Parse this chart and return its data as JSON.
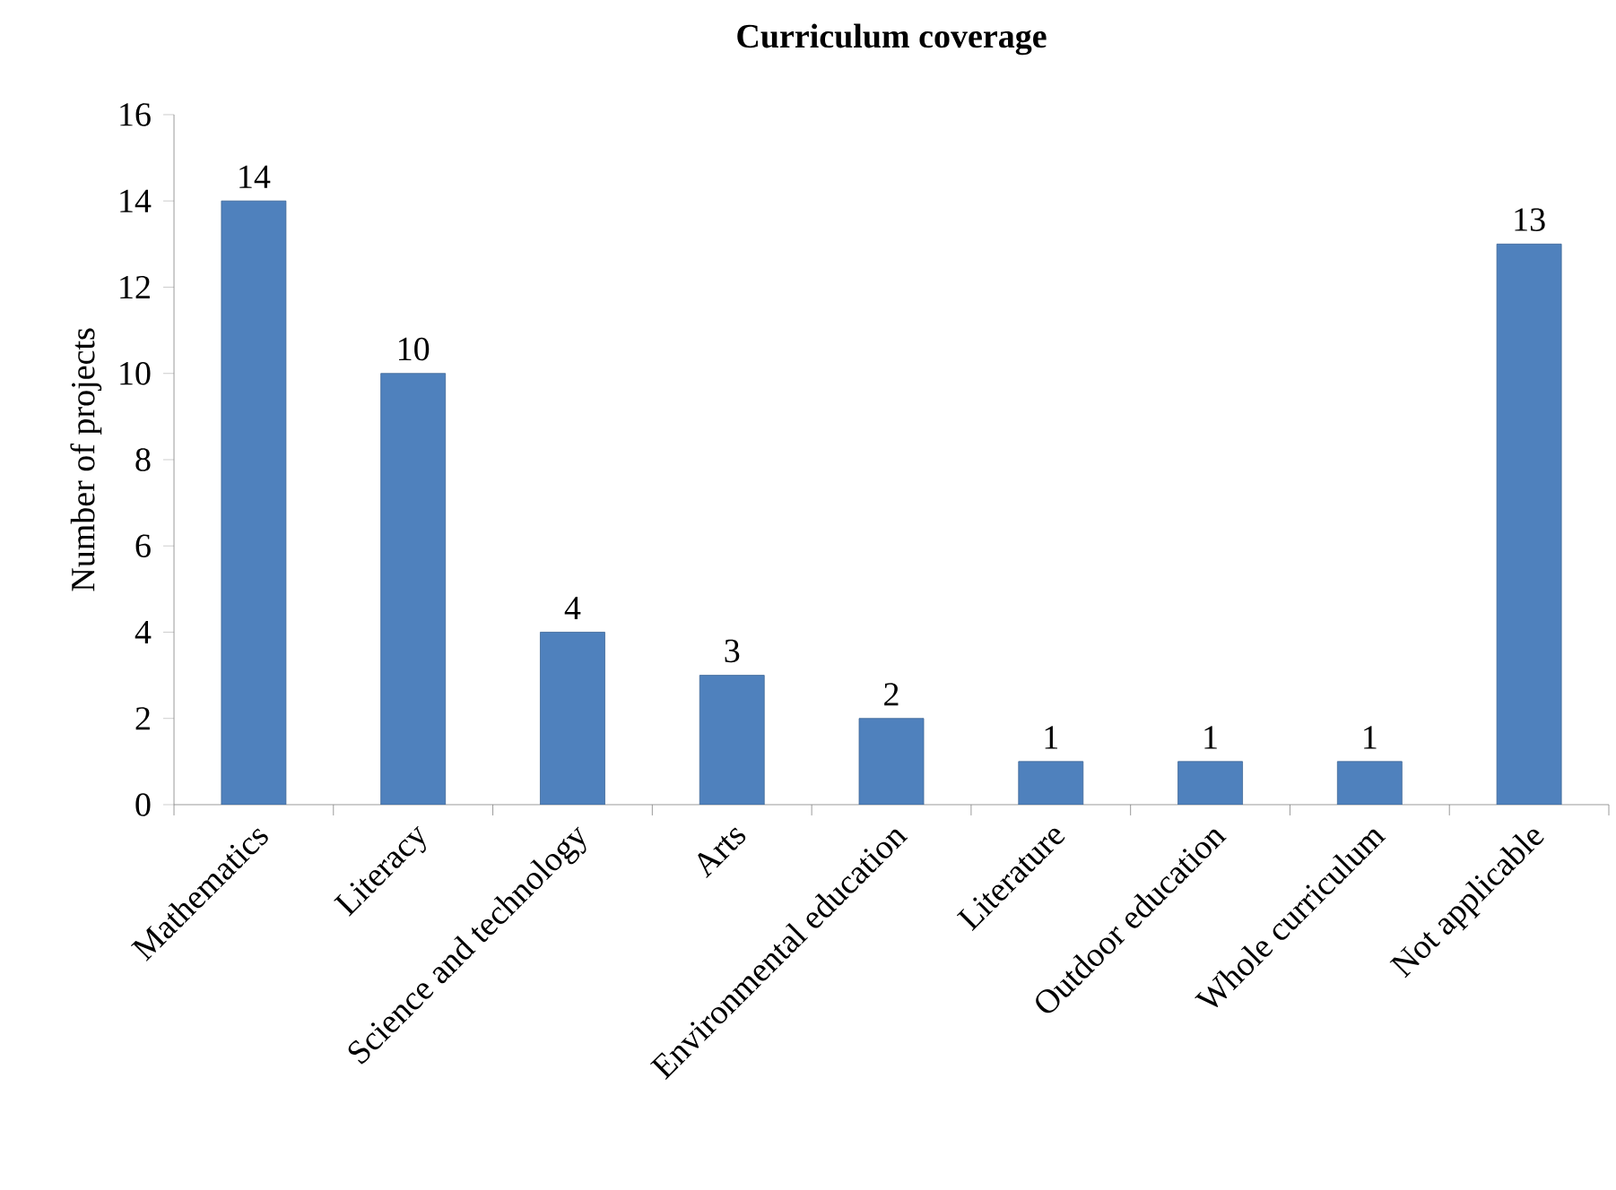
{
  "chart_data": {
    "type": "bar",
    "title": "Curriculum coverage",
    "ylabel": "Number of projects",
    "categories": [
      "Mathematics",
      "Literacy",
      "Science and technology",
      "Arts",
      "Environmental education",
      "Literature",
      "Outdoor education",
      "Whole curriculum",
      "Not applicable"
    ],
    "values": [
      14,
      10,
      4,
      3,
      2,
      1,
      1,
      1,
      13
    ],
    "color": "#4f81bd",
    "ylim": [
      0,
      16
    ],
    "yticks": [
      0,
      2,
      4,
      6,
      8,
      10,
      12,
      14,
      16
    ],
    "data_labels": true,
    "grid": false
  }
}
